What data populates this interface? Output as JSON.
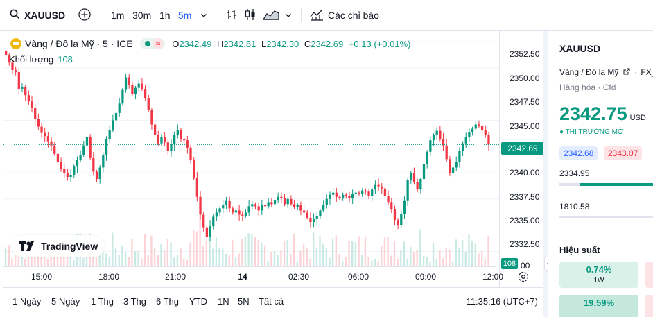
{
  "toolbar": {
    "symbol": "XAUUSD",
    "timeframes": [
      "1m",
      "30m",
      "1h",
      "5m"
    ],
    "active_timeframe": "5m",
    "indicators_label": "Các chỉ báo"
  },
  "legend": {
    "title": "Vàng / Đô la Mỹ · 5 · ICE",
    "wave_glyph": "≈",
    "o_label": "O",
    "o_value": "2342.49",
    "h_label": "H",
    "h_value": "2342.81",
    "l_label": "L",
    "l_value": "2342.30",
    "c_label": "C",
    "c_value": "2342.69",
    "change": "+0.13 (+0.01%)",
    "volume_label": "Khối lượng",
    "volume_value": "108"
  },
  "price_axis": {
    "ticks": [
      "2352.50",
      "2350.00",
      "2347.50",
      "2345.00",
      "2342.69",
      "2340.00",
      "2337.50",
      "2335.00",
      "2332.50",
      "00"
    ],
    "current_price": "2342.69",
    "volume_tag": "108"
  },
  "time_axis": {
    "labels": [
      "15:00",
      "18:00",
      "21:00",
      "14",
      "02:30",
      "06:00",
      "09:00",
      "12:00"
    ]
  },
  "logo_text": "TradingView",
  "ranges": [
    "1 Ngày",
    "5 Ngày",
    "1 Thg",
    "3 Thg",
    "6 Thg",
    "YTD",
    "1N",
    "5N",
    "Tất cả"
  ],
  "clock": "11:35:16 (UTC+7)",
  "side": {
    "symbol": "XAUUSD",
    "description": "Vàng / Đô la Mỹ",
    "exchange": "FX_",
    "category": "Hàng hóa · Cfd",
    "price": "2342.75",
    "currency": "USD",
    "market_status": "THỊ TRƯỜNG MỞ",
    "bid": "2342.68",
    "ask": "2343.07",
    "day_low": "2334.95",
    "volume_stat": "1810.58",
    "performance_title": "Hiệu suất",
    "perf": [
      {
        "value": "0.74%",
        "label": "1W"
      },
      {
        "value": "19.59%",
        "label": ""
      }
    ]
  },
  "colors": {
    "up": "#089981",
    "down": "#f23645",
    "accent": "#2962ff",
    "gold": "#f0b90b"
  },
  "chart_data": {
    "type": "candlestick",
    "timeframe": "5m",
    "x_ticks": [
      "15:00",
      "18:00",
      "21:00",
      "14",
      "02:30",
      "06:00",
      "09:00",
      "12:00"
    ],
    "y_ticks": [
      2352.5,
      2350.0,
      2347.5,
      2345.0,
      2340.0,
      2337.5,
      2335.0,
      2332.5
    ],
    "ylim": [
      2331.0,
      2353.5
    ],
    "last_price": 2342.69,
    "close_path": [
      2351.2,
      2350.5,
      2349.8,
      2349.6,
      2348.0,
      2348.2,
      2347.4,
      2346.8,
      2346.2,
      2345.1,
      2344.4,
      2343.8,
      2343.5,
      2343.0,
      2342.6,
      2341.8,
      2341.0,
      2340.4,
      2340.0,
      2339.6,
      2339.8,
      2340.6,
      2341.2,
      2341.7,
      2342.6,
      2343.4,
      2341.4,
      2340.1,
      2339.4,
      2340.5,
      2341.7,
      2343.2,
      2344.1,
      2345.0,
      2345.7,
      2346.6,
      2347.9,
      2349.1,
      2348.4,
      2347.5,
      2348.1,
      2348.5,
      2348.0,
      2347.1,
      2346.0,
      2344.6,
      2343.6,
      2342.8,
      2343.4,
      2342.9,
      2342.1,
      2342.7,
      2343.6,
      2344.1,
      2343.2,
      2343.1,
      2342.4,
      2341.2,
      2339.5,
      2337.7,
      2336.0,
      2334.8,
      2333.9,
      2334.9,
      2335.8,
      2336.2,
      2336.6,
      2336.9,
      2337.3,
      2336.6,
      2336.2,
      2336.4,
      2336.0,
      2335.9,
      2336.2,
      2336.8,
      2337.0,
      2336.8,
      2336.4,
      2336.9,
      2336.8,
      2337.2,
      2337.0,
      2337.4,
      2337.7,
      2337.6,
      2337.0,
      2337.5,
      2337.0,
      2336.7,
      2336.9,
      2336.4,
      2336.2,
      2335.7,
      2335.3,
      2335.6,
      2335.9,
      2336.4,
      2336.9,
      2337.5,
      2337.9,
      2338.1,
      2337.7,
      2337.6,
      2337.9,
      2337.8,
      2337.6,
      2338.0,
      2338.1,
      2338.0,
      2338.3,
      2338.2,
      2337.8,
      2338.4,
      2338.9,
      2338.7,
      2338.5,
      2337.8,
      2337.2,
      2336.5,
      2335.5,
      2335.0,
      2336.1,
      2337.3,
      2339.3,
      2340.0,
      2339.1,
      2338.4,
      2339.4,
      2340.8,
      2342.0,
      2343.1,
      2343.6,
      2344.0,
      2343.2,
      2342.6,
      2341.3,
      2340.0,
      2340.5,
      2341.0,
      2342.1,
      2342.8,
      2343.4,
      2343.9,
      2344.2,
      2344.6,
      2344.5,
      2344.1,
      2343.6,
      2342.69
    ]
  }
}
